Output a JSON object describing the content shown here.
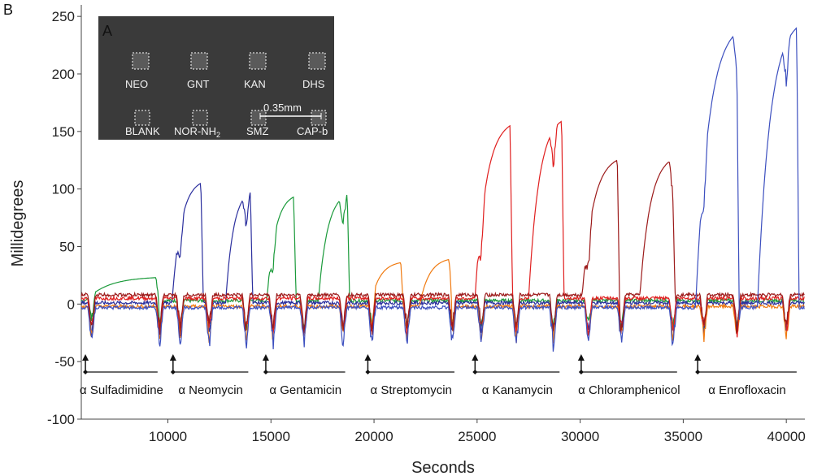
{
  "panel_label": "B",
  "inset": {
    "panel_label": "A",
    "spots_row1": [
      "NEO",
      "GNT",
      "KAN",
      "DHS"
    ],
    "spots_row2": [
      "BLANK",
      "NOR-NH",
      "SMZ",
      "CAP-b"
    ],
    "subscript_2": "2",
    "scale_bar": "0.35mm"
  },
  "chart_data": {
    "type": "line",
    "title": "",
    "xlabel": "Seconds",
    "ylabel": "Millidegrees",
    "xlim": [
      5800,
      40900
    ],
    "ylim": [
      -100,
      260
    ],
    "x_ticks": [
      10000,
      15000,
      20000,
      25000,
      30000,
      35000,
      40000
    ],
    "y_ticks": [
      -100,
      -50,
      0,
      50,
      100,
      150,
      200,
      250
    ],
    "injections": [
      {
        "label": "α Sulfadimidine",
        "x_start": 6000,
        "x_end": 9500
      },
      {
        "label": "α Neomycin",
        "x_start": 10250,
        "x_end": 13900
      },
      {
        "label": "α Gentamicin",
        "x_start": 14750,
        "x_end": 18600
      },
      {
        "label": "α Streptomycin",
        "x_start": 19700,
        "x_end": 23900
      },
      {
        "label": "α Kanamycin",
        "x_start": 24900,
        "x_end": 29000
      },
      {
        "label": "α Chloramphenicol",
        "x_start": 30050,
        "x_end": 34700
      },
      {
        "label": "α Enrofloxacin",
        "x_start": 35700,
        "x_end": 40500
      }
    ],
    "dips": [
      6300,
      9600,
      10600,
      12000,
      13800,
      15100,
      16600,
      18500,
      19900,
      21600,
      23800,
      25200,
      26900,
      28700,
      30400,
      32000,
      34500,
      36000,
      37600,
      40000
    ],
    "series": [
      {
        "name": "green",
        "color": "#1a9a3a",
        "peaks": [
          [
            6000,
            9500,
            20
          ],
          [
            14800,
            16100,
            90
          ],
          [
            17300,
            18700,
            92
          ]
        ]
      },
      {
        "name": "blue",
        "color": "#2b2f9e",
        "peaks": [
          [
            10200,
            11600,
            104
          ],
          [
            12800,
            14000,
            96
          ]
        ]
      },
      {
        "name": "orange",
        "color": "#f07a10",
        "peaks": [
          [
            19800,
            21300,
            38
          ],
          [
            22200,
            23700,
            41
          ]
        ]
      },
      {
        "name": "red",
        "color": "#e01f1f",
        "peaks": [
          [
            24900,
            26600,
            150
          ],
          [
            27500,
            29100,
            154
          ]
        ]
      },
      {
        "name": "dark-red",
        "color": "#9c1a1a",
        "peaks": [
          [
            30100,
            31800,
            117
          ],
          [
            32900,
            34500,
            118
          ]
        ]
      },
      {
        "name": "royal-blue",
        "color": "#3c4fbf",
        "peaks": [
          [
            35600,
            37600,
            239
          ],
          [
            38600,
            40500,
            243
          ]
        ]
      }
    ]
  }
}
